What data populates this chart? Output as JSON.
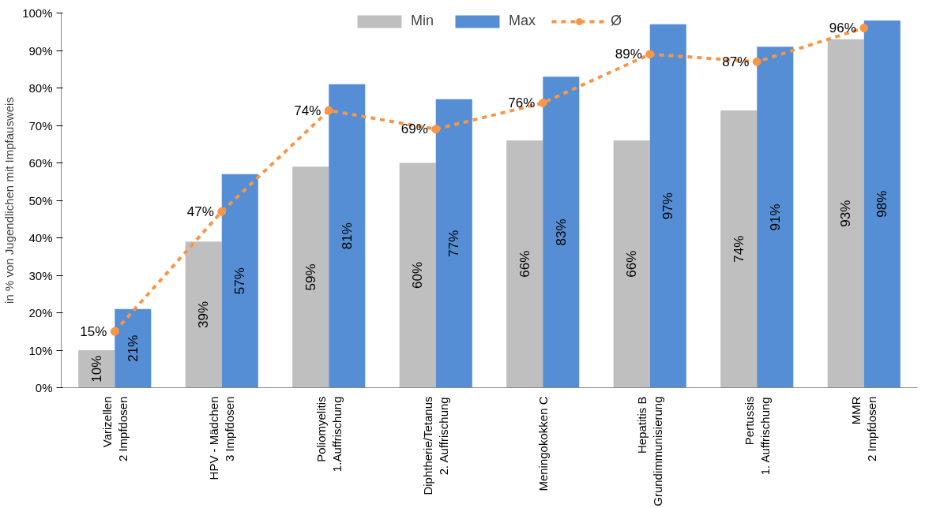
{
  "chart_data": {
    "type": "bar",
    "ylabel": "in % von Jugendlichen mit Impfausweis",
    "categories": [
      "Varizellen\n2 Impfdosen",
      "HPV - Mädchen\n3 Impfdosen",
      "Poliomyelitis\n1.Auffrischung",
      "Diphtherie/Tetanus\n2. Auffrischung",
      "Meningokokken C",
      "Hepatitis B\nGrundimmunisierung",
      "Pertussis\n1. Auffrischung",
      "MMR\n2 Impfdosen"
    ],
    "series": [
      {
        "name": "Min",
        "color": "#bfbfbf",
        "values": [
          10,
          39,
          59,
          60,
          66,
          66,
          74,
          93
        ],
        "value_labels": [
          "10%",
          "39%",
          "59%",
          "60%",
          "66%",
          "66%",
          "74%",
          "93%"
        ]
      },
      {
        "name": "Max",
        "color": "#558ed5",
        "values": [
          21,
          57,
          81,
          77,
          83,
          97,
          91,
          98
        ],
        "value_labels": [
          "21%",
          "57%",
          "81%",
          "77%",
          "83%",
          "97%",
          "91%",
          "98%"
        ]
      },
      {
        "name": "Ø",
        "type": "line",
        "color": "#f79646",
        "values": [
          15,
          47,
          74,
          69,
          76,
          89,
          87,
          96
        ],
        "value_labels": [
          "15%",
          "47%",
          "74%",
          "69%",
          "76%",
          "89%",
          "87%",
          "96%"
        ]
      }
    ],
    "ylim": [
      0,
      100
    ],
    "yticks": [
      {
        "value": 0,
        "label": "0%"
      },
      {
        "value": 10,
        "label": "10%"
      },
      {
        "value": 20,
        "label": "20%"
      },
      {
        "value": 30,
        "label": "30%"
      },
      {
        "value": 40,
        "label": "40%"
      },
      {
        "value": 50,
        "label": "50%"
      },
      {
        "value": 60,
        "label": "60%"
      },
      {
        "value": 70,
        "label": "70%"
      },
      {
        "value": 80,
        "label": "80%"
      },
      {
        "value": 90,
        "label": "90%"
      },
      {
        "value": 100,
        "label": "100%"
      }
    ],
    "grid": false,
    "legend": "top",
    "marker": "circle",
    "line_style": "dashed"
  }
}
